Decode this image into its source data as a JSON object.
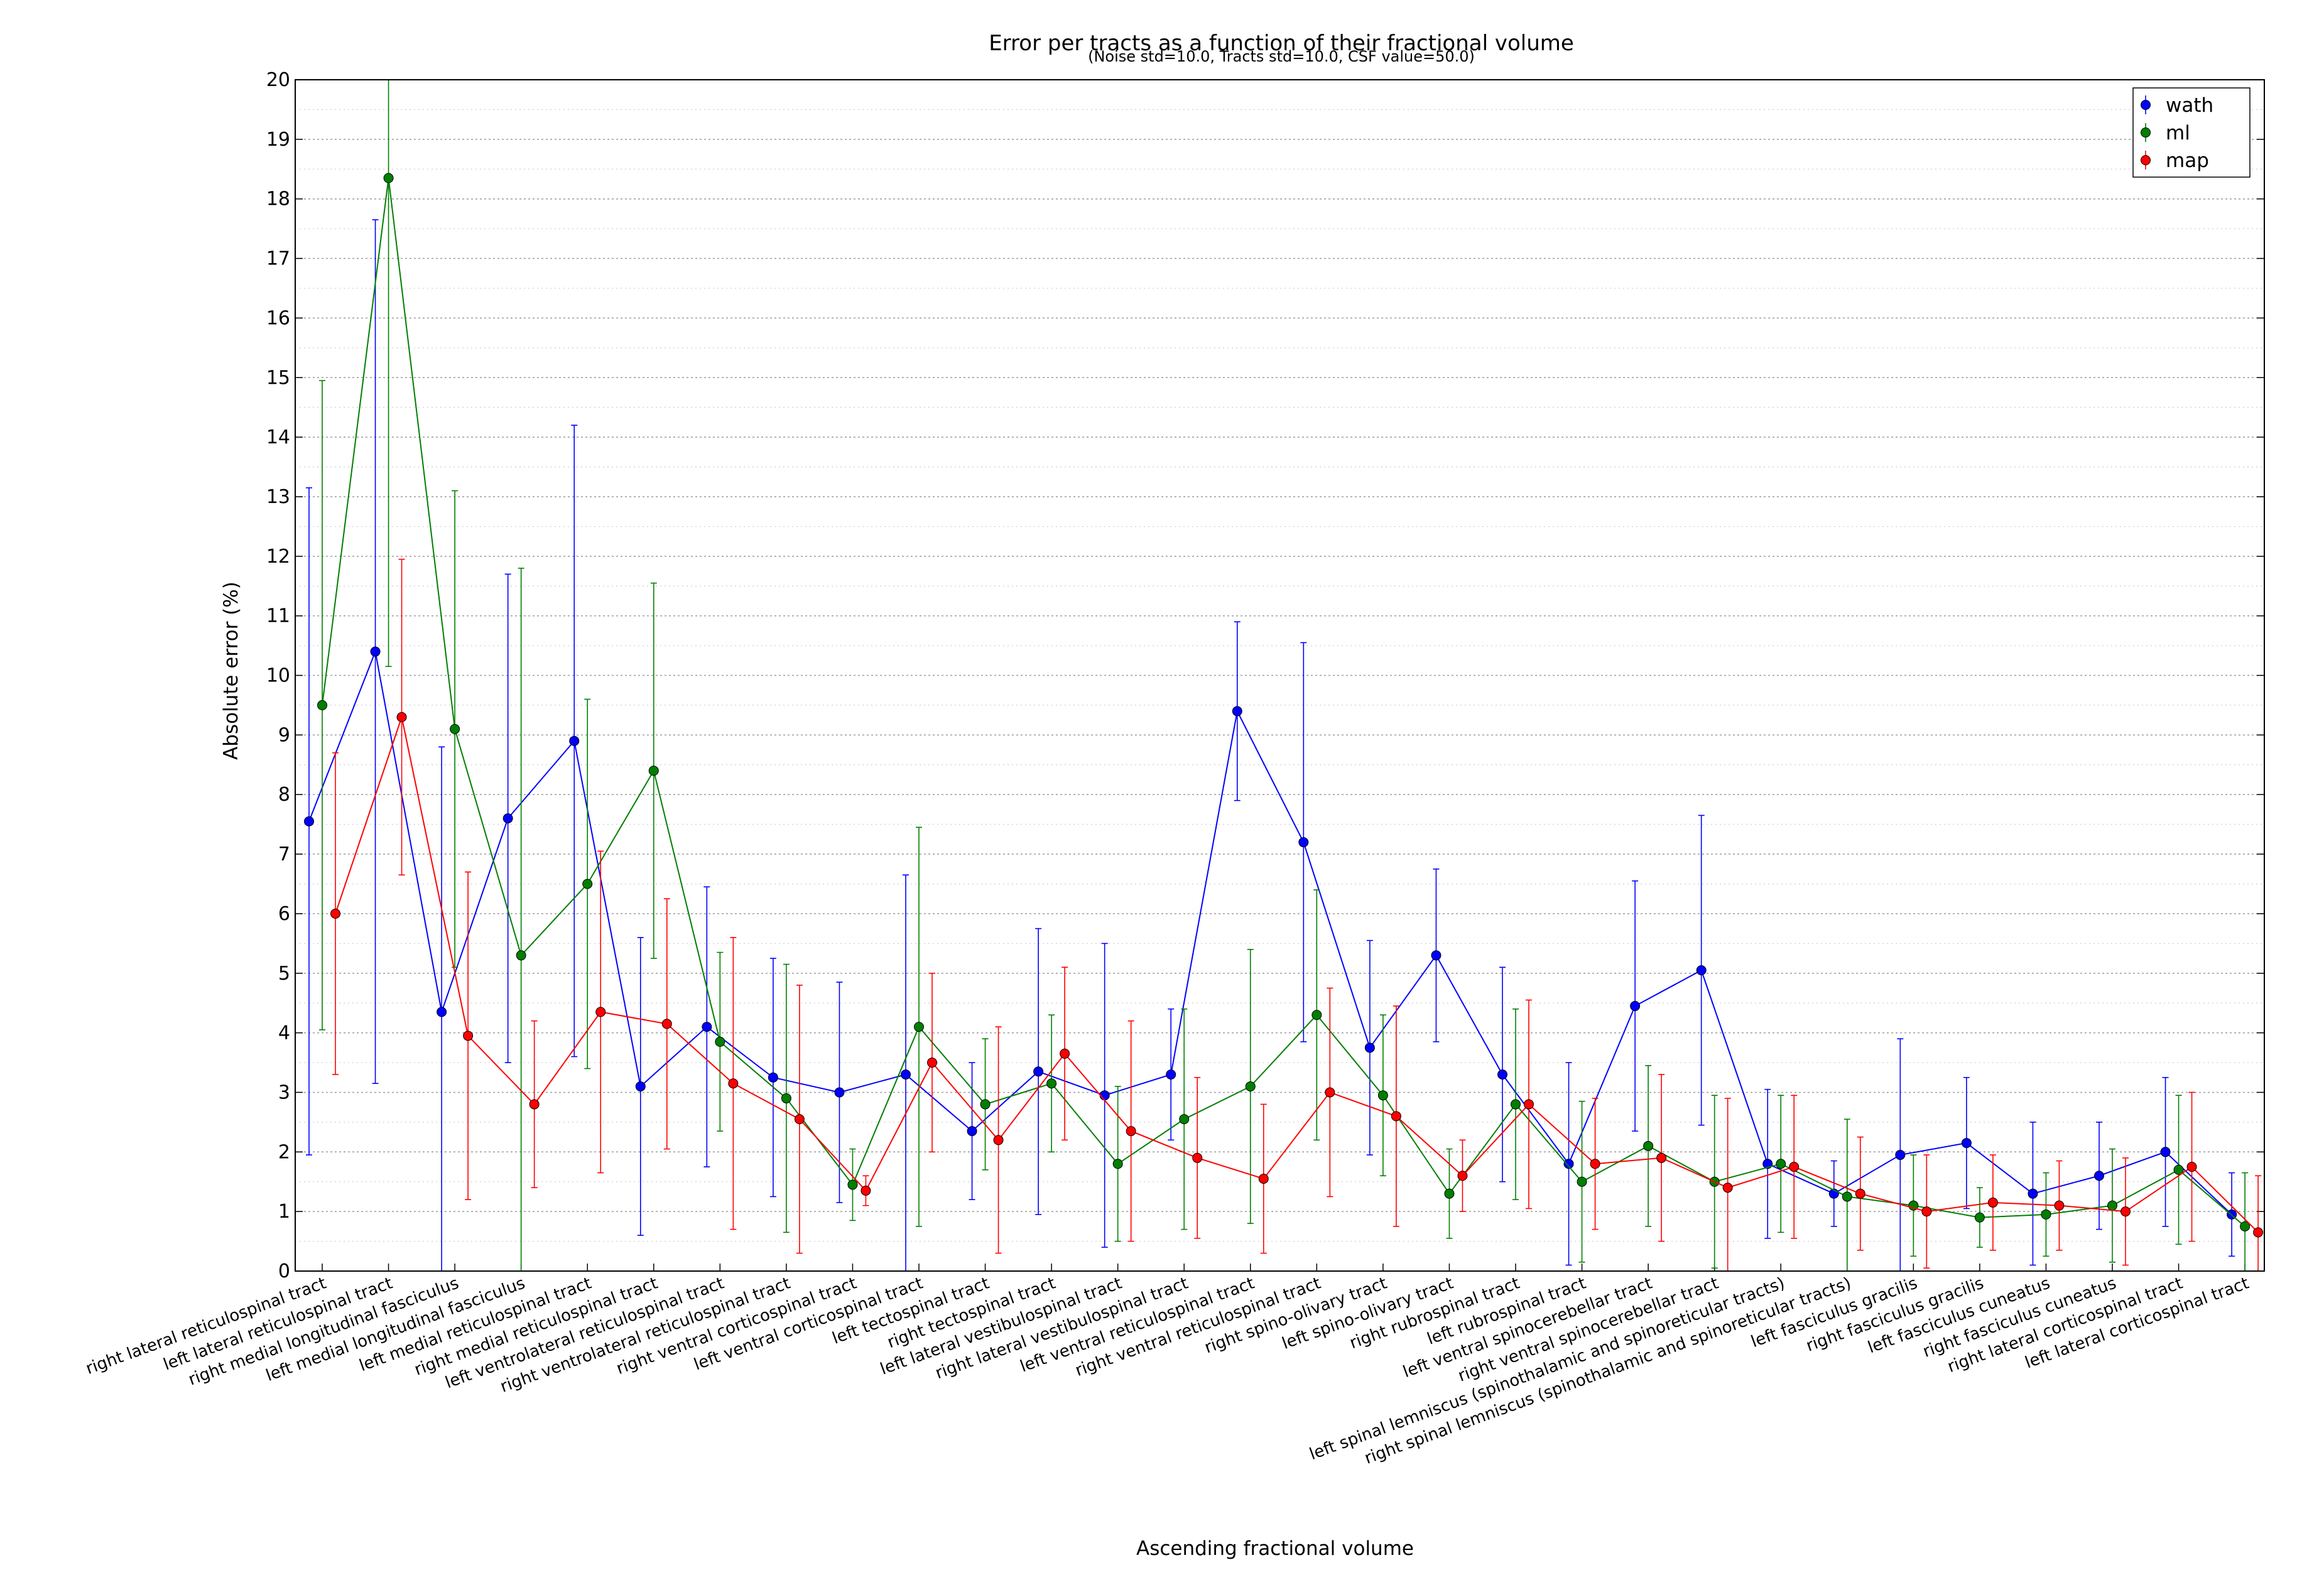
{
  "chart_data": {
    "type": "line",
    "title": "Error per tracts as a function of their fractional volume",
    "subtitle": "(Noise std=10.0, Tracts std=10.0, CSF value=50.0)",
    "xlabel": "Ascending fractional volume",
    "ylabel": "Absolute error (%)",
    "ylim": [
      0,
      20
    ],
    "yticks": [
      "0",
      "1",
      "2",
      "3",
      "4",
      "5",
      "6",
      "7",
      "8",
      "9",
      "10",
      "11",
      "12",
      "13",
      "14",
      "15",
      "16",
      "17",
      "18",
      "19",
      "20"
    ],
    "grid": "horizontal dotted",
    "legend_position": "top-right",
    "categories": [
      "right lateral reticulospinal tract",
      "left lateral reticulospinal tract",
      "right medial longitudinal fasciculus",
      "left medial longitudinal fasciculus",
      "left medial reticulospinal tract",
      "right medial reticulospinal tract",
      "left ventrolateral reticulospinal tract",
      "right ventrolateral reticulospinal tract",
      "right ventral corticospinal tract",
      "left ventral corticospinal tract",
      "left tectospinal tract",
      "right tectospinal tract",
      "left lateral vestibulospinal tract",
      "right lateral vestibulospinal tract",
      "left ventral reticulospinal tract",
      "right ventral reticulospinal tract",
      "right spino-olivary tract",
      "left spino-olivary tract",
      "right rubrospinal tract",
      "left rubrospinal tract",
      "left ventral spinocerebellar tract",
      "right ventral spinocerebellar tract",
      "left spinal lemniscus (spinothalamic and spinoreticular tracts)",
      "right spinal lemniscus (spinothalamic and spinoreticular tracts)",
      "left fasciculus gracilis",
      "right fasciculus gracilis",
      "left fasciculus cuneatus",
      "right fasciculus cuneatus",
      "right lateral corticospinal tract",
      "left lateral corticospinal tract"
    ],
    "series": [
      {
        "name": "wath",
        "color": "#0000ff",
        "values": [
          7.55,
          10.4,
          4.35,
          7.6,
          8.9,
          3.1,
          4.1,
          3.25,
          3.0,
          3.3,
          2.35,
          3.35,
          2.95,
          3.3,
          9.4,
          7.2,
          3.75,
          5.3,
          3.3,
          1.8,
          4.45,
          5.05,
          1.8,
          1.3,
          1.95,
          2.15,
          1.3,
          1.6,
          2.0,
          0.95
        ],
        "errors": [
          5.6,
          7.25,
          4.45,
          4.1,
          5.3,
          2.5,
          2.35,
          2.0,
          1.85,
          3.35,
          1.15,
          2.4,
          2.55,
          1.1,
          1.5,
          3.35,
          1.8,
          1.45,
          1.8,
          1.7,
          2.1,
          2.6,
          1.25,
          0.55,
          1.95,
          1.1,
          1.2,
          0.9,
          1.25,
          0.7
        ]
      },
      {
        "name": "ml",
        "color": "#007f00",
        "values": [
          9.5,
          18.35,
          9.1,
          5.3,
          6.5,
          8.4,
          3.85,
          2.9,
          1.45,
          4.1,
          2.8,
          3.15,
          1.8,
          2.55,
          3.1,
          4.3,
          2.95,
          1.3,
          2.8,
          1.5,
          2.1,
          1.5,
          1.8,
          1.25,
          1.1,
          0.9,
          0.95,
          1.1,
          1.7,
          0.75
        ],
        "errors": [
          5.45,
          8.2,
          4.0,
          6.5,
          3.1,
          3.15,
          1.5,
          2.25,
          0.6,
          3.35,
          1.1,
          1.15,
          1.3,
          1.85,
          2.3,
          2.1,
          1.35,
          0.75,
          1.6,
          1.35,
          1.35,
          1.45,
          1.15,
          1.3,
          0.85,
          0.5,
          0.7,
          0.95,
          1.25,
          0.9
        ]
      },
      {
        "name": "map",
        "color": "#ff0000",
        "values": [
          6.0,
          9.3,
          3.95,
          2.8,
          4.35,
          4.15,
          3.15,
          2.55,
          1.35,
          3.5,
          2.2,
          3.65,
          2.35,
          1.9,
          1.55,
          3.0,
          2.6,
          1.6,
          2.8,
          1.8,
          1.9,
          1.4,
          1.75,
          1.3,
          1.0,
          1.15,
          1.1,
          1.0,
          1.75,
          0.65
        ],
        "errors": [
          2.7,
          2.65,
          2.75,
          1.4,
          2.7,
          2.1,
          2.45,
          2.25,
          0.25,
          1.5,
          1.9,
          1.45,
          1.85,
          1.35,
          1.25,
          1.75,
          1.85,
          0.6,
          1.75,
          1.1,
          1.4,
          1.5,
          1.2,
          0.95,
          0.95,
          0.8,
          0.75,
          0.9,
          1.25,
          0.95
        ]
      }
    ]
  }
}
